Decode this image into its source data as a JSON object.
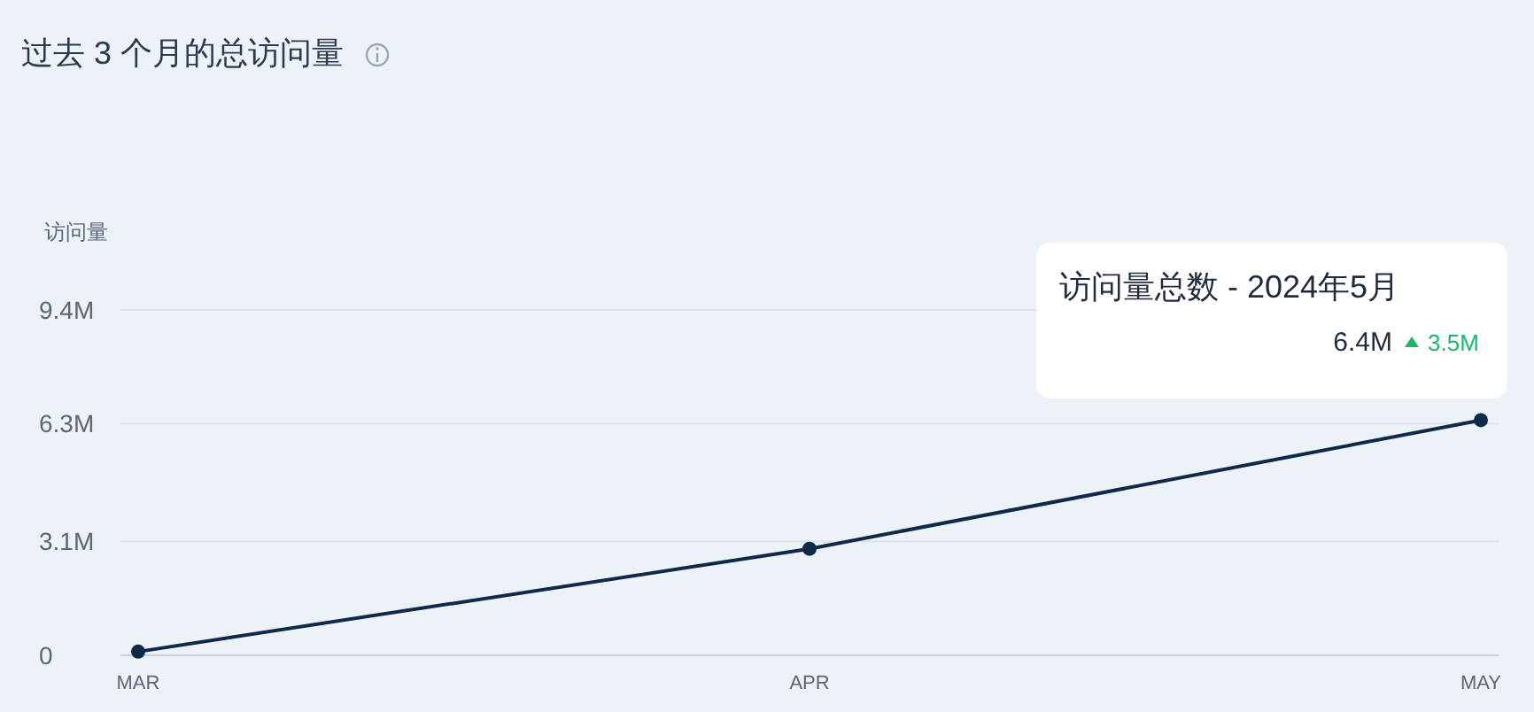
{
  "chart_data": {
    "type": "line",
    "title": "过去 3 个月的总访问量",
    "ylabel": "访问量",
    "categories": [
      "MAR",
      "APR",
      "MAY"
    ],
    "series": [
      {
        "color": "#0f2a48",
        "values": [
          0.1,
          2.9,
          6.4
        ]
      }
    ],
    "ylim": [
      0,
      9.4
    ],
    "yticks": [
      0,
      {
        "value": 3.1,
        "label": "3.1M"
      },
      {
        "value": 6.3,
        "label": "6.3M"
      },
      {
        "value": 9.4,
        "label": "9.4M"
      }
    ],
    "grid": "y",
    "marker": "circle",
    "line_style": "solid",
    "annotations": [
      "访问量总数 - 2024年5月",
      "6.4M",
      "3.5M"
    ]
  }
}
